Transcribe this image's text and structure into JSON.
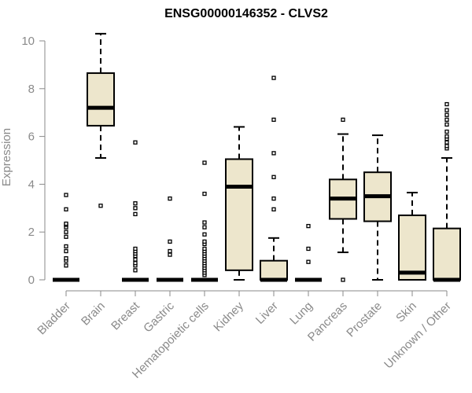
{
  "chart_data": {
    "type": "boxplot",
    "title": "ENSG00000146352 - CLVS2",
    "xlabel": "",
    "ylabel": "Expression",
    "ylim": [
      0,
      10.3
    ],
    "yticks": [
      0,
      2,
      4,
      6,
      8,
      10
    ],
    "grid": false,
    "legend": "none",
    "box_fill": "#ede6cc",
    "box_stroke": "#000000",
    "categories": [
      "Bladder",
      "Brain",
      "Breast",
      "Gastric",
      "Hematopoietic cells",
      "Kidney",
      "Liver",
      "Lung",
      "Pancreas",
      "Prostate",
      "Skin",
      "Unknown / Other"
    ],
    "boxes": [
      {
        "name": "Bladder",
        "q1": 0,
        "median": 0,
        "q3": 0,
        "whisker_low": 0,
        "whisker_high": 0,
        "outliers": [
          0.6,
          0.8,
          0.9,
          1.2,
          1.4,
          1.8,
          2.0,
          2.2,
          2.3,
          2.35,
          2.95,
          3.55
        ]
      },
      {
        "name": "Brain",
        "q1": 6.45,
        "median": 7.2,
        "q3": 8.65,
        "whisker_low": 5.1,
        "whisker_high": 10.3,
        "outliers": [
          3.1
        ]
      },
      {
        "name": "Breast",
        "q1": 0,
        "median": 0,
        "q3": 0,
        "whisker_low": 0,
        "whisker_high": 0,
        "outliers": [
          0.4,
          0.6,
          0.7,
          0.85,
          1.0,
          1.1,
          1.2,
          1.3,
          2.75,
          3.0,
          3.2,
          5.75
        ]
      },
      {
        "name": "Gastric",
        "q1": 0,
        "median": 0,
        "q3": 0,
        "whisker_low": 0,
        "whisker_high": 0,
        "outliers": [
          1.05,
          1.2,
          1.6,
          3.4
        ]
      },
      {
        "name": "Hematopoietic cells",
        "q1": 0,
        "median": 0,
        "q3": 0,
        "whisker_low": 0,
        "whisker_high": 0,
        "outliers": [
          0.2,
          0.3,
          0.4,
          0.5,
          0.6,
          0.7,
          0.8,
          0.9,
          1.0,
          1.1,
          1.2,
          1.3,
          1.5,
          1.6,
          1.9,
          2.2,
          2.4,
          3.6,
          4.9
        ]
      },
      {
        "name": "Kidney",
        "q1": 0.4,
        "median": 3.9,
        "q3": 5.05,
        "whisker_low": 0,
        "whisker_high": 6.4,
        "outliers": []
      },
      {
        "name": "Liver",
        "q1": 0,
        "median": 0,
        "q3": 0.8,
        "whisker_low": 0,
        "whisker_high": 1.75,
        "outliers": [
          2.95,
          3.4,
          4.3,
          5.3,
          6.7,
          8.45
        ]
      },
      {
        "name": "Lung",
        "q1": 0,
        "median": 0,
        "q3": 0,
        "whisker_low": 0,
        "whisker_high": 0,
        "outliers": [
          0.75,
          1.3,
          2.25
        ]
      },
      {
        "name": "Pancreas",
        "q1": 2.55,
        "median": 3.4,
        "q3": 4.2,
        "whisker_low": 1.15,
        "whisker_high": 6.1,
        "outliers": [
          0,
          6.7
        ]
      },
      {
        "name": "Prostate",
        "q1": 2.45,
        "median": 3.5,
        "q3": 4.5,
        "whisker_low": 0,
        "whisker_high": 6.05,
        "outliers": []
      },
      {
        "name": "Skin",
        "q1": 0,
        "median": 0.3,
        "q3": 2.7,
        "whisker_low": 0,
        "whisker_high": 3.65,
        "outliers": []
      },
      {
        "name": "Unknown / Other",
        "q1": 0,
        "median": 0,
        "q3": 2.15,
        "whisker_low": 0,
        "whisker_high": 5.1,
        "outliers": [
          5.5,
          5.6,
          5.75,
          5.9,
          6.0,
          6.2,
          6.5,
          6.7,
          6.9,
          7.1,
          7.35
        ]
      }
    ]
  }
}
